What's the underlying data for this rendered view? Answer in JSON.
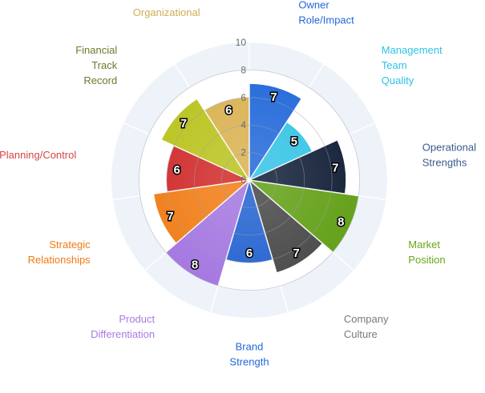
{
  "chart_data": {
    "type": "polar-area",
    "title": "",
    "rmax": 10,
    "ticks": [
      "0",
      "2",
      "4",
      "6",
      "8",
      "10"
    ],
    "grid": true,
    "categories": [
      {
        "label": "Owner\nRole/Impact",
        "value": 7,
        "color": "#1f66d9",
        "label_color": "#1f66d9"
      },
      {
        "label": "Management\nTeam\nQuality",
        "value": 5,
        "color": "#2fc3e6",
        "label_color": "#2fc3e6"
      },
      {
        "label": "Operational\nStrengths",
        "value": 7,
        "color": "#0d1b33",
        "label_color": "#3a5a8c"
      },
      {
        "label": "Market\nPosition",
        "value": 8,
        "color": "#5f9e12",
        "label_color": "#6aa61b"
      },
      {
        "label": "Company\nCulture",
        "value": 7,
        "color": "#444444",
        "label_color": "#7a7a7a"
      },
      {
        "label": "Brand\nStrength",
        "value": 6,
        "color": "#1f5fcf",
        "label_color": "#1f66d9"
      },
      {
        "label": "Product\nDifferentiation",
        "value": 8,
        "color": "#a274e0",
        "label_color": "#a97ae3"
      },
      {
        "label": "Strategic\nRelationships",
        "value": 7,
        "color": "#f07a12",
        "label_color": "#f07a12"
      },
      {
        "label": "Planning/Control",
        "value": 6,
        "color": "#cf2727",
        "label_color": "#d64545"
      },
      {
        "label": "Financial\nTrack\nRecord",
        "value": 7,
        "color": "#b8c21a",
        "label_color": "#6e7a2a"
      },
      {
        "label": "Organizational",
        "value": 6,
        "color": "#d9b04e",
        "label_color": "#d2ac55"
      }
    ]
  }
}
